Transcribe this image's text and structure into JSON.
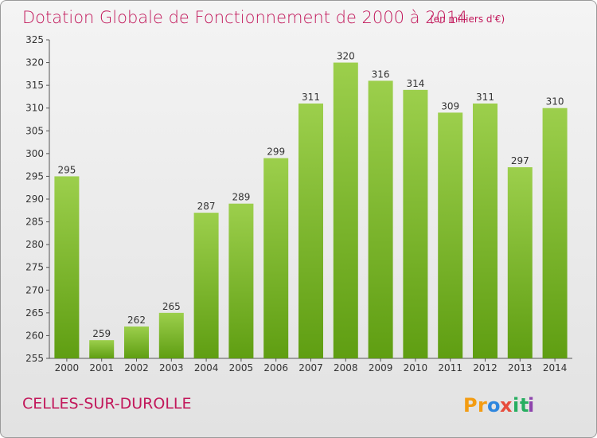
{
  "chart_data": {
    "type": "bar",
    "title": "Dotation Globale de Fonctionnement de 2000 à 2014",
    "subtitle": "(en milliers d'€)",
    "categories": [
      "2000",
      "2001",
      "2002",
      "2003",
      "2004",
      "2005",
      "2006",
      "2007",
      "2008",
      "2009",
      "2010",
      "2011",
      "2012",
      "2013",
      "2014"
    ],
    "values": [
      295,
      259,
      262,
      265,
      287,
      289,
      299,
      311,
      320,
      316,
      314,
      309,
      311,
      297,
      310
    ],
    "ylim": [
      255,
      325
    ],
    "yticks": [
      255,
      260,
      265,
      270,
      275,
      280,
      285,
      290,
      295,
      300,
      305,
      310,
      315,
      320,
      325
    ],
    "grid": false,
    "bar_color": "#7cc02e",
    "xlabel": "",
    "ylabel": ""
  },
  "footer": {
    "commune": "CELLES-SUR-DUROLLE",
    "logo_letters": [
      "P",
      "r",
      "o",
      "x",
      "i",
      "t",
      "i"
    ],
    "logo_colors": [
      "#f39c12",
      "#f39c12",
      "#2e86de",
      "#e74c3c",
      "#27ae60",
      "#27ae60",
      "#8e44ad"
    ]
  },
  "colors": {
    "title": "#c2185b"
  }
}
